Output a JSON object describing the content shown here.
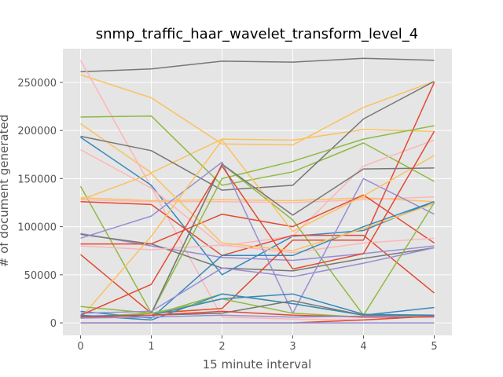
{
  "chart_data": {
    "type": "line",
    "title": "snmp_traffic_haar_wavelet_transform_level_4",
    "xlabel": "15 minute interval",
    "ylabel": "# of document generated",
    "x": [
      0,
      1,
      2,
      3,
      4,
      5
    ],
    "xlim": [
      -0.25,
      5.25
    ],
    "ylim": [
      -13000,
      285000
    ],
    "xticks": [
      "0",
      "1",
      "2",
      "3",
      "4",
      "5"
    ],
    "yticks": [
      "0",
      "50000",
      "100000",
      "150000",
      "200000",
      "250000"
    ],
    "grid": true,
    "background": "#e5e5e5",
    "grid_color": "#ffffff",
    "series": [
      {
        "color": "#777777",
        "values": [
          261000,
          264000,
          272000,
          271000,
          275000,
          273000
        ]
      },
      {
        "color": "#fbc15e",
        "values": [
          258000,
          234000,
          186000,
          185000,
          224000,
          251000
        ]
      },
      {
        "color": "#fbc15e",
        "values": [
          207000,
          156000,
          191000,
          190000,
          201000,
          199000
        ]
      },
      {
        "color": "#ffb5b8",
        "values": [
          273000,
          141000,
          6000,
          4000,
          3000,
          8000
        ]
      },
      {
        "color": "#8eba42",
        "values": [
          214000,
          215000,
          143000,
          157000,
          187000,
          147000
        ]
      },
      {
        "color": "#348abd",
        "values": [
          193000,
          143000,
          50000,
          90000,
          96000,
          126000
        ]
      },
      {
        "color": "#777777",
        "values": [
          194000,
          179000,
          138000,
          143000,
          212000,
          251000
        ]
      },
      {
        "color": "#ffb5b8",
        "values": [
          180000,
          140000,
          80000,
          90000,
          163000,
          190000
        ]
      },
      {
        "color": "#8eba42",
        "values": [
          142000,
          10000,
          165000,
          107000,
          8000,
          8000
        ]
      },
      {
        "color": "#fbc15e",
        "values": [
          130000,
          127000,
          128000,
          127000,
          130000,
          126000
        ]
      },
      {
        "color": "#e24a33",
        "values": [
          126000,
          123000,
          70000,
          91000,
          91000,
          31000
        ]
      },
      {
        "color": "#ffb5b8",
        "values": [
          128000,
          126000,
          126000,
          125000,
          128000,
          131000
        ]
      },
      {
        "color": "#988ed5",
        "values": [
          93000,
          80000,
          68000,
          65000,
          72000,
          80000
        ]
      },
      {
        "color": "#777777",
        "values": [
          92000,
          82000,
          57000,
          54000,
          67000,
          78000
        ]
      },
      {
        "color": "#e24a33",
        "values": [
          82000,
          82000,
          113000,
          100000,
          133000,
          83000
        ]
      },
      {
        "color": "#ffb5b8",
        "values": [
          80000,
          76000,
          81000,
          73000,
          83000,
          88000
        ]
      },
      {
        "color": "#e24a33",
        "values": [
          71000,
          10000,
          15000,
          86000,
          86000,
          250000
        ]
      },
      {
        "color": "#988ed5",
        "values": [
          88000,
          111000,
          167000,
          10000,
          150000,
          113000
        ]
      },
      {
        "color": "#348abd",
        "values": [
          12000,
          5000,
          70000,
          70000,
          100000,
          126000
        ]
      },
      {
        "color": "#fbc15e",
        "values": [
          128000,
          155000,
          83000,
          75000,
          98000,
          124000
        ]
      },
      {
        "color": "#fbc15e",
        "values": [
          5000,
          90000,
          190000,
          95000,
          132000,
          174000
        ]
      },
      {
        "color": "#8eba42",
        "values": [
          17000,
          10000,
          150000,
          168000,
          191000,
          205000
        ]
      },
      {
        "color": "#777777",
        "values": [
          5000,
          10000,
          165000,
          112000,
          160000,
          161000
        ]
      },
      {
        "color": "#988ed5",
        "values": [
          10000,
          12000,
          57000,
          48000,
          62000,
          78000
        ]
      },
      {
        "color": "#e24a33",
        "values": [
          8000,
          40000,
          163000,
          56000,
          72000,
          199000
        ]
      },
      {
        "color": "#8eba42",
        "values": [
          7000,
          8000,
          30000,
          20000,
          8000,
          125000
        ]
      },
      {
        "color": "#348abd",
        "values": [
          8000,
          3000,
          30000,
          20000,
          8000,
          16000
        ]
      },
      {
        "color": "#8eba42",
        "values": [
          6000,
          10000,
          25000,
          10000,
          6000,
          8000
        ]
      },
      {
        "color": "#777777",
        "values": [
          6000,
          8000,
          10000,
          23000,
          8000,
          8000
        ]
      },
      {
        "color": "#348abd",
        "values": [
          7000,
          8000,
          25000,
          30000,
          9000,
          8000
        ]
      },
      {
        "color": "#e24a33",
        "values": [
          6000,
          8000,
          12000,
          8000,
          6000,
          6000
        ]
      },
      {
        "color": "#988ed5",
        "values": [
          5000,
          6000,
          8000,
          6000,
          7000,
          6000
        ]
      },
      {
        "color": "#e24a33",
        "values": [
          0,
          0,
          0,
          0,
          3000,
          7000
        ]
      },
      {
        "color": "#988ed5",
        "values": [
          0,
          0,
          0,
          0,
          0,
          0
        ]
      }
    ]
  }
}
